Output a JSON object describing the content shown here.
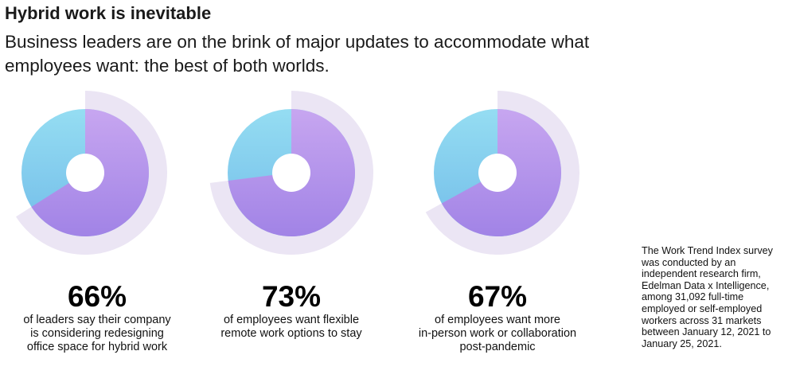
{
  "header": {
    "title": "Hybrid work is inevitable",
    "subtitle": "Business leaders are on the brink of major updates to accommodate what employees want: the best of both worlds."
  },
  "colors": {
    "main_start": "#c7a6f0",
    "main_end": "#a183e6",
    "rest_start": "#95ddf2",
    "rest_end": "#72bce9",
    "halo": "#ebe5f4",
    "center": "#ffffff"
  },
  "chart_data": [
    {
      "type": "pie",
      "value": 66,
      "label": "66%",
      "description": "of leaders say their company is considering redesigning office space for hybrid work",
      "description_lines": [
        "of leaders say their company",
        "is considering redesigning",
        "office space for hybrid work"
      ]
    },
    {
      "type": "pie",
      "value": 73,
      "label": "73%",
      "description": "of employees want flexible remote work options to stay",
      "description_lines": [
        "of employees want flexible",
        "remote work options to stay"
      ]
    },
    {
      "type": "pie",
      "value": 67,
      "label": "67%",
      "description": "of employees want more in-person work or collaboration post-pandemic",
      "description_lines": [
        "of employees want more",
        "in-person work or collaboration",
        "post-pandemic"
      ]
    }
  ],
  "footnote": {
    "lines": [
      "The Work Trend Index survey",
      "was conducted by an",
      "independent research firm,",
      "Edelman Data x Intelligence,",
      "among 31,092 full-time",
      "employed or self-employed",
      "workers across 31 markets",
      "between January 12, 2021 to",
      "January 25, 2021."
    ]
  }
}
